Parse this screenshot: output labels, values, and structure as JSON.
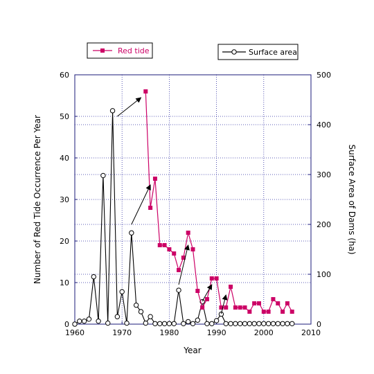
{
  "chart_data": {
    "type": "line",
    "x_axis": {
      "label": "Year",
      "range": [
        1960,
        2010
      ],
      "ticks": [
        "1960",
        "1970",
        "1980",
        "1990",
        "2000",
        "2010"
      ]
    },
    "y_axis_left": {
      "label": "Number of Red Tide Occurrence Per Year",
      "range": [
        0,
        60
      ],
      "ticks": [
        "0",
        "10",
        "20",
        "30",
        "40",
        "50",
        "60"
      ]
    },
    "y_axis_right": {
      "label": "Surface Area of Dams (ha)",
      "range": [
        0,
        500
      ],
      "ticks": [
        "0",
        "100",
        "200",
        "300",
        "400",
        "500"
      ]
    },
    "grid": true,
    "legend_placement": "top",
    "series": [
      {
        "name": "Red tide",
        "axis": "left",
        "color": "#cc0066",
        "marker": "filled-square",
        "x": [
          1975,
          1976,
          1977,
          1978,
          1979,
          1980,
          1981,
          1982,
          1983,
          1984,
          1985,
          1986,
          1987,
          1988,
          1989,
          1990,
          1991,
          1992,
          1993,
          1994,
          1995,
          1996,
          1997,
          1998,
          1999,
          2000,
          2001,
          2002,
          2003,
          2004,
          2005,
          2006
        ],
        "y": [
          56,
          28,
          35,
          19,
          19,
          18,
          17,
          13,
          16,
          22,
          18,
          8,
          4,
          6,
          11,
          11,
          4,
          4,
          9,
          4,
          4,
          4,
          3,
          5,
          5,
          3,
          3,
          6,
          5,
          3,
          5,
          3
        ]
      },
      {
        "name": "Surface area",
        "axis": "right",
        "color": "#000000",
        "marker": "open-circle",
        "x": [
          1960,
          1961,
          1962,
          1963,
          1964,
          1965,
          1966,
          1967,
          1968,
          1969,
          1970,
          1971,
          1972,
          1973,
          1974,
          1975,
          1976,
          1977,
          1978,
          1979,
          1980,
          1981,
          1982,
          1983,
          1984,
          1985,
          1986,
          1987,
          1988,
          1989,
          1990,
          1991,
          1992,
          1993,
          1994,
          1995,
          1996,
          1997,
          1998,
          1999,
          2000,
          2001,
          2002,
          2003,
          2004,
          2005,
          2006
        ],
        "y": [
          0,
          6,
          6,
          10,
          95,
          6,
          298,
          2,
          428,
          15,
          65,
          2,
          183,
          38,
          25,
          2,
          15,
          1,
          1,
          1,
          1,
          1,
          68,
          1,
          5,
          1,
          8,
          45,
          1,
          1,
          7,
          20,
          1,
          1,
          1,
          1,
          1,
          1,
          1,
          1,
          1,
          1,
          1,
          1,
          1,
          1,
          1
        ]
      }
    ],
    "arrows": [
      {
        "from": [
          1969,
          50
        ],
        "to": [
          1974,
          54.5
        ]
      },
      {
        "from": [
          1972,
          24
        ],
        "to": [
          1976,
          33.5
        ]
      },
      {
        "from": [
          1982,
          9.5
        ],
        "to": [
          1984,
          19
        ]
      },
      {
        "from": [
          1987,
          5.5
        ],
        "to": [
          1989,
          9.5
        ]
      },
      {
        "from": [
          1991,
          2.5
        ],
        "to": [
          1992,
          7
        ]
      }
    ]
  }
}
